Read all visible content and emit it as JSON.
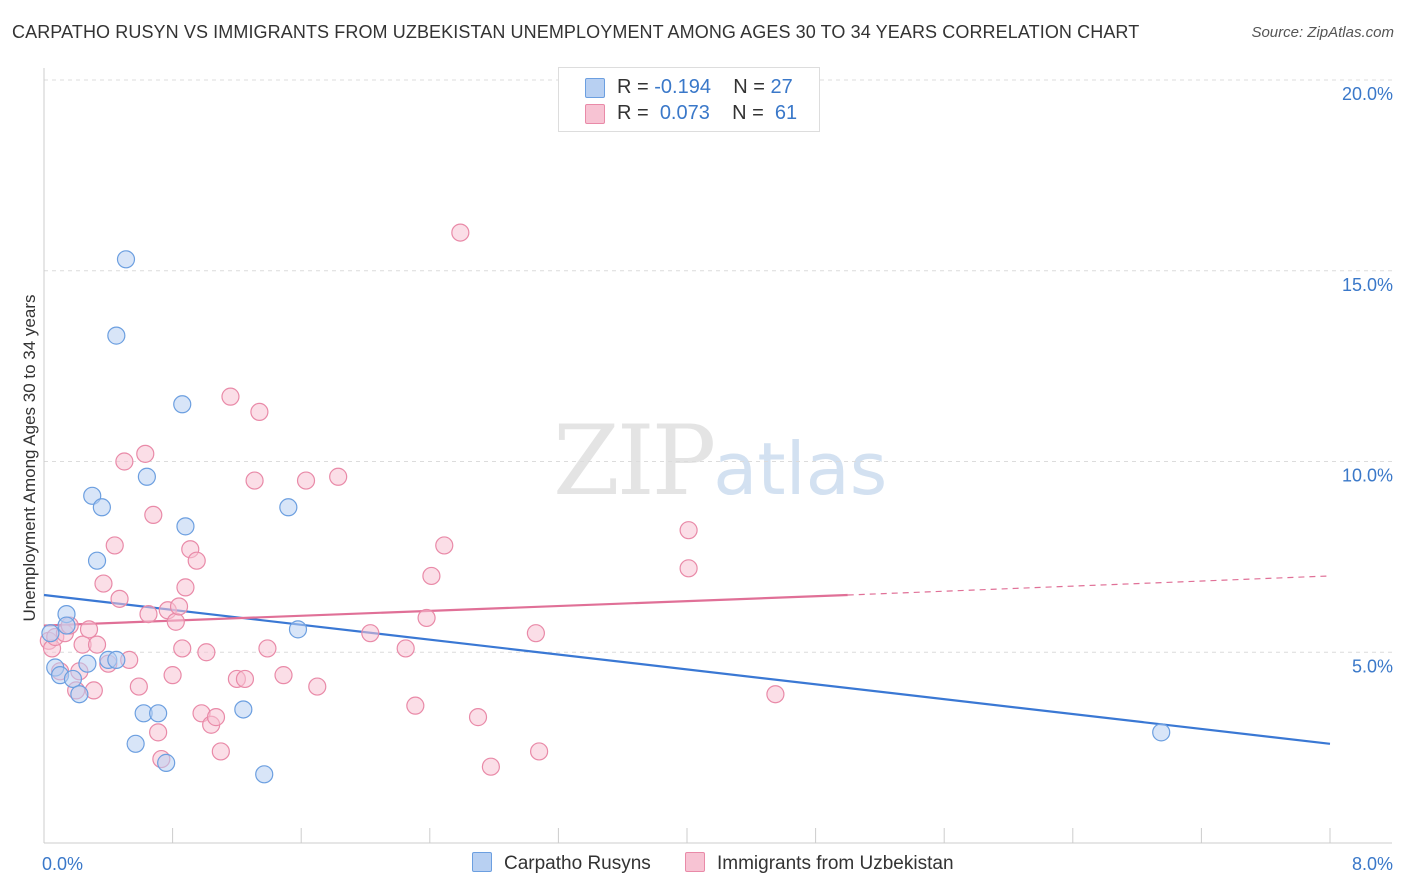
{
  "chart_data": {
    "type": "scatter",
    "title": "CARPATHO RUSYN VS IMMIGRANTS FROM UZBEKISTAN UNEMPLOYMENT AMONG AGES 30 TO 34 YEARS CORRELATION CHART",
    "source": "Source: ZipAtlas.com",
    "ylabel": "Unemployment Among Ages 30 to 34 years",
    "xlabel": "",
    "xlim": [
      0,
      8
    ],
    "ylim": [
      0,
      20
    ],
    "x_tick_labels": [
      "0.0%",
      "8.0%"
    ],
    "y_ticks": [
      5,
      10,
      15,
      20
    ],
    "y_tick_labels": [
      "5.0%",
      "10.0%",
      "15.0%",
      "20.0%"
    ],
    "grid": true,
    "legend_position": "top-center",
    "series": [
      {
        "name": "Carpatho Rusyns",
        "color": "#6c9fe0",
        "fill": "#b8d0f2",
        "stats": {
          "r_label": "R =",
          "r_value": "-0.194",
          "n_label": "N =",
          "n_value": "27"
        },
        "trend": {
          "x0": 0,
          "y0": 6.5,
          "x1": 8,
          "y1": 2.6
        },
        "points": [
          [
            0.04,
            5.5
          ],
          [
            0.07,
            4.6
          ],
          [
            0.1,
            4.4
          ],
          [
            0.14,
            6.0
          ],
          [
            0.14,
            5.7
          ],
          [
            0.18,
            4.3
          ],
          [
            0.22,
            3.9
          ],
          [
            0.27,
            4.7
          ],
          [
            0.3,
            9.1
          ],
          [
            0.33,
            7.4
          ],
          [
            0.36,
            8.8
          ],
          [
            0.4,
            4.8
          ],
          [
            0.45,
            4.8
          ],
          [
            0.45,
            13.3
          ],
          [
            0.51,
            15.3
          ],
          [
            0.57,
            2.6
          ],
          [
            0.62,
            3.4
          ],
          [
            0.64,
            9.6
          ],
          [
            0.71,
            3.4
          ],
          [
            0.76,
            2.1
          ],
          [
            0.86,
            11.5
          ],
          [
            0.88,
            8.3
          ],
          [
            1.24,
            3.5
          ],
          [
            1.37,
            1.8
          ],
          [
            1.52,
            8.8
          ],
          [
            1.58,
            5.6
          ],
          [
            6.95,
            2.9
          ]
        ]
      },
      {
        "name": "Immigrants from Uzbekistan",
        "color": "#e98aa8",
        "fill": "#f7c3d3",
        "stats": {
          "r_label": "R =",
          "r_value": "0.073",
          "n_label": "N =",
          "n_value": "61"
        },
        "trend": {
          "x0": 0,
          "y0": 5.7,
          "x1": 5.0,
          "y1": 6.5,
          "x_dash_end": 8,
          "y_dash_end": 7.0
        },
        "points": [
          [
            0.03,
            5.3
          ],
          [
            0.05,
            5.1
          ],
          [
            0.07,
            5.4
          ],
          [
            0.1,
            4.5
          ],
          [
            0.13,
            5.5
          ],
          [
            0.16,
            5.7
          ],
          [
            0.2,
            4.0
          ],
          [
            0.22,
            4.5
          ],
          [
            0.24,
            5.2
          ],
          [
            0.28,
            5.6
          ],
          [
            0.31,
            4.0
          ],
          [
            0.33,
            5.2
          ],
          [
            0.37,
            6.8
          ],
          [
            0.4,
            4.7
          ],
          [
            0.44,
            7.8
          ],
          [
            0.47,
            6.4
          ],
          [
            0.5,
            10.0
          ],
          [
            0.53,
            4.8
          ],
          [
            0.59,
            4.1
          ],
          [
            0.63,
            10.2
          ],
          [
            0.65,
            6.0
          ],
          [
            0.68,
            8.6
          ],
          [
            0.71,
            2.9
          ],
          [
            0.73,
            2.2
          ],
          [
            0.77,
            6.1
          ],
          [
            0.8,
            4.4
          ],
          [
            0.82,
            5.8
          ],
          [
            0.84,
            6.2
          ],
          [
            0.86,
            5.1
          ],
          [
            0.88,
            6.7
          ],
          [
            0.91,
            7.7
          ],
          [
            0.95,
            7.4
          ],
          [
            0.98,
            3.4
          ],
          [
            1.01,
            5.0
          ],
          [
            1.04,
            3.1
          ],
          [
            1.07,
            3.3
          ],
          [
            1.1,
            2.4
          ],
          [
            1.16,
            11.7
          ],
          [
            1.2,
            4.3
          ],
          [
            1.25,
            4.3
          ],
          [
            1.31,
            9.5
          ],
          [
            1.34,
            11.3
          ],
          [
            1.39,
            5.1
          ],
          [
            1.49,
            4.4
          ],
          [
            1.63,
            9.5
          ],
          [
            1.7,
            4.1
          ],
          [
            1.83,
            9.6
          ],
          [
            2.03,
            5.5
          ],
          [
            2.25,
            5.1
          ],
          [
            2.31,
            3.6
          ],
          [
            2.38,
            5.9
          ],
          [
            2.41,
            7.0
          ],
          [
            2.49,
            7.8
          ],
          [
            2.59,
            16.0
          ],
          [
            2.7,
            3.3
          ],
          [
            2.78,
            2.0
          ],
          [
            3.06,
            5.5
          ],
          [
            3.08,
            2.4
          ],
          [
            4.01,
            8.2
          ],
          [
            4.01,
            7.2
          ],
          [
            4.55,
            3.9
          ]
        ]
      }
    ]
  },
  "watermark": {
    "zip": "ZIP",
    "atlas": "atlas"
  }
}
